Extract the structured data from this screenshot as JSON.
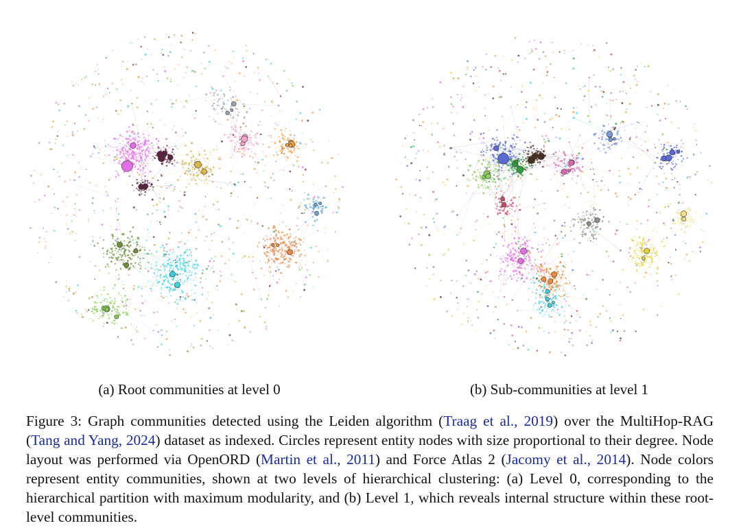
{
  "figure": {
    "subcaptions": {
      "a": "(a) Root communities at level 0",
      "b": "(b) Sub-communities at level 1"
    },
    "caption": {
      "p1": "Figure 3: Graph communities detected using the Leiden algorithm (",
      "c1": "Traag et al.",
      "p2": ", ",
      "y1": "2019",
      "p3": ") over the MultiHop-RAG (",
      "c2": "Tang and Yang",
      "p4": ", ",
      "y2": "2024",
      "p5": ") dataset as indexed. Circles represent entity nodes with size proportional to their degree. Node layout was performed via OpenORD (",
      "c3": "Martin et al.",
      "p6": ", ",
      "y3": "2011",
      "p7": ") and Force Atlas 2 (",
      "c4": "Jacomy et al.",
      "p8": ", ",
      "y4": "2014",
      "p9": "). Node colors represent entity communities, shown at two levels of hierarchical clustering: (a) Level 0, corresponding to the hierarchical partition with maximum modularity, and (b) Level 1, which reveals internal structure within these root-level communities."
    },
    "colors": {
      "citation": "#1a2a9a",
      "level0_palette": [
        "#e36fe6",
        "#f0a040",
        "#e58b4a",
        "#3ed0e0",
        "#8ccf5a",
        "#6b8f3a",
        "#5c2340",
        "#d9b54a",
        "#6aa8d8",
        "#9aa0b0",
        "#f4a2c8",
        "#c08a5a"
      ],
      "level1_palette": [
        "#3fd0e0",
        "#2f9d3a",
        "#e36fe6",
        "#f0a040",
        "#8ccf5a",
        "#e8d040",
        "#c05070",
        "#5a6ad0",
        "#f28c38",
        "#4a3020",
        "#7a9ad8",
        "#d86ab0",
        "#f0e080",
        "#909090"
      ]
    }
  }
}
